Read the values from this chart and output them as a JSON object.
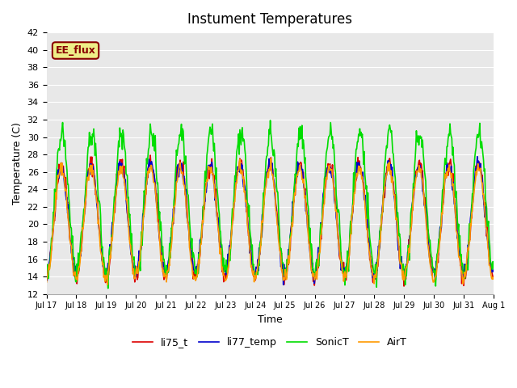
{
  "title": "Instument Temperatures",
  "xlabel": "Time",
  "ylabel": "Temperature (C)",
  "ylim": [
    12,
    42
  ],
  "yticks": [
    12,
    14,
    16,
    18,
    20,
    22,
    24,
    26,
    28,
    30,
    32,
    34,
    36,
    38,
    40,
    42
  ],
  "background_color": "#e8e8e8",
  "figure_color": "#ffffff",
  "annotation_text": "EE_flux",
  "annotation_bg": "#eeee88",
  "annotation_edge": "#880000",
  "lines": [
    {
      "label": "li75_t",
      "color": "#dd0000",
      "lw": 1.2
    },
    {
      "label": "li77_temp",
      "color": "#0000cc",
      "lw": 1.2
    },
    {
      "label": "SonicT",
      "color": "#00dd00",
      "lw": 1.2
    },
    {
      "label": "AirT",
      "color": "#ff9900",
      "lw": 1.2
    }
  ],
  "xtick_labels": [
    "Jul 17",
    "Jul 18",
    "Jul 19",
    "Jul 20",
    "Jul 21",
    "Jul 22",
    "Jul 23",
    "Jul 24",
    "Jul 25",
    "Jul 26",
    "Jul 27",
    "Jul 28",
    "Jul 29",
    "Jul 30",
    "Jul 31",
    "Aug 1"
  ],
  "xtick_positions": [
    0,
    1,
    2,
    3,
    4,
    5,
    6,
    7,
    8,
    9,
    10,
    11,
    12,
    13,
    14,
    15
  ],
  "days": 15,
  "points_per_day": 48,
  "seed": 42,
  "base_temp": 14.0,
  "amplitude": 13.0,
  "sonic_extra": 2.0,
  "noise_scale": 0.5
}
